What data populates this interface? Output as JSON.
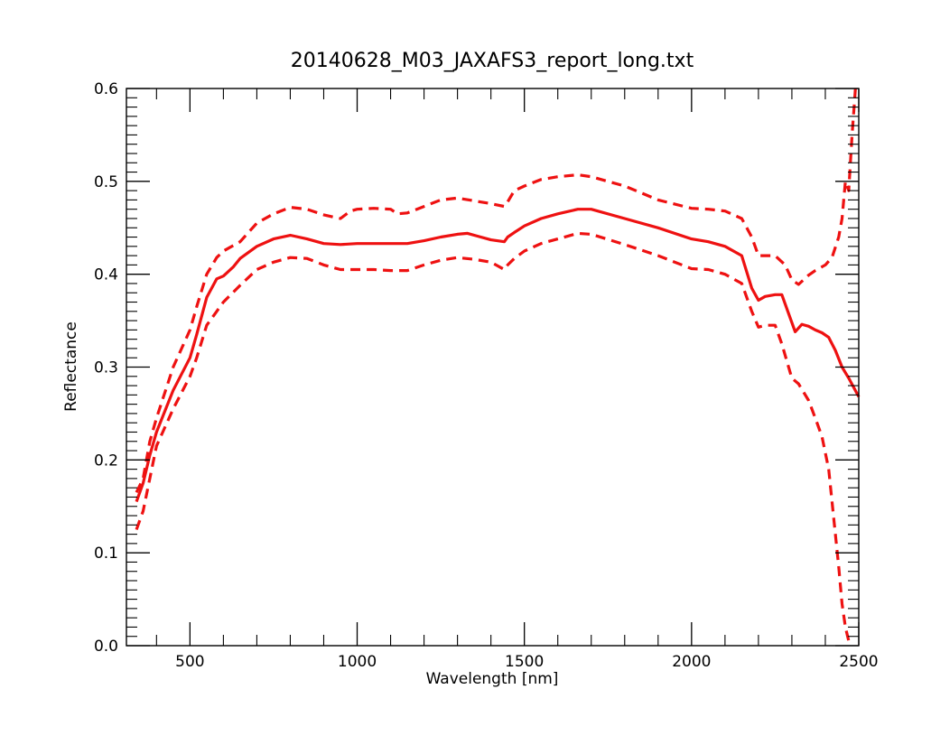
{
  "chart_data": {
    "type": "line",
    "title": "20140628_M03_JAXAFS3_report_long.txt",
    "xlabel": "Wavelength [nm]",
    "ylabel": "Reflectance",
    "xlim": [
      310,
      2500
    ],
    "ylim": [
      0,
      0.6
    ],
    "x_ticks": [
      500,
      1000,
      1500,
      2000,
      2500
    ],
    "y_ticks": [
      0.0,
      0.1,
      0.2,
      0.3,
      0.4,
      0.5,
      0.6
    ],
    "x_tick_labels": [
      "500",
      "1000",
      "1500",
      "2000",
      "2500"
    ],
    "y_tick_labels": [
      "0.0",
      "0.1",
      "0.2",
      "0.3",
      "0.4",
      "0.5",
      "0.6"
    ],
    "grid": false,
    "line_color": "#ee1111",
    "series": [
      {
        "style": "solid",
        "x": [
          340,
          360,
          380,
          400,
          450,
          500,
          520,
          550,
          580,
          600,
          630,
          650,
          700,
          750,
          800,
          850,
          900,
          950,
          1000,
          1050,
          1100,
          1150,
          1200,
          1250,
          1300,
          1330,
          1360,
          1400,
          1440,
          1450,
          1470,
          1500,
          1550,
          1600,
          1660,
          1700,
          1800,
          1900,
          2000,
          2050,
          2100,
          2150,
          2180,
          2200,
          2220,
          2250,
          2270,
          2290,
          2310,
          2330,
          2350,
          2370,
          2390,
          2410,
          2430,
          2450,
          2470,
          2500
        ],
        "y": [
          0.155,
          0.175,
          0.205,
          0.23,
          0.275,
          0.31,
          0.335,
          0.375,
          0.395,
          0.398,
          0.408,
          0.417,
          0.43,
          0.438,
          0.442,
          0.438,
          0.433,
          0.432,
          0.433,
          0.433,
          0.433,
          0.433,
          0.436,
          0.44,
          0.443,
          0.444,
          0.441,
          0.437,
          0.435,
          0.44,
          0.445,
          0.452,
          0.46,
          0.465,
          0.47,
          0.47,
          0.46,
          0.45,
          0.438,
          0.435,
          0.43,
          0.42,
          0.385,
          0.372,
          0.376,
          0.378,
          0.378,
          0.358,
          0.338,
          0.346,
          0.344,
          0.34,
          0.337,
          0.332,
          0.318,
          0.3,
          0.288,
          0.268
        ]
      },
      {
        "style": "dashed",
        "x": [
          340,
          360,
          380,
          400,
          450,
          500,
          520,
          550,
          580,
          600,
          650,
          700,
          750,
          800,
          850,
          900,
          950,
          980,
          1000,
          1050,
          1100,
          1120,
          1150,
          1200,
          1250,
          1300,
          1350,
          1400,
          1440,
          1450,
          1470,
          1500,
          1550,
          1600,
          1660,
          1700,
          1800,
          1900,
          2000,
          2050,
          2100,
          2150,
          2180,
          2200,
          2220,
          2250,
          2280,
          2300,
          2320,
          2350,
          2370,
          2400,
          2420,
          2440,
          2450,
          2460,
          2470,
          2480,
          2490
        ],
        "y": [
          0.165,
          0.18,
          0.22,
          0.245,
          0.3,
          0.34,
          0.365,
          0.4,
          0.418,
          0.425,
          0.435,
          0.455,
          0.465,
          0.472,
          0.47,
          0.464,
          0.46,
          0.468,
          0.47,
          0.471,
          0.47,
          0.465,
          0.466,
          0.473,
          0.48,
          0.482,
          0.479,
          0.476,
          0.473,
          0.478,
          0.49,
          0.495,
          0.502,
          0.505,
          0.507,
          0.505,
          0.495,
          0.48,
          0.471,
          0.47,
          0.468,
          0.46,
          0.44,
          0.42,
          0.42,
          0.42,
          0.41,
          0.394,
          0.389,
          0.399,
          0.404,
          0.41,
          0.418,
          0.44,
          0.46,
          0.5,
          0.49,
          0.55,
          0.6
        ]
      },
      {
        "style": "dashed",
        "x": [
          340,
          360,
          380,
          400,
          450,
          500,
          520,
          550,
          580,
          600,
          650,
          700,
          750,
          800,
          850,
          900,
          950,
          1000,
          1050,
          1100,
          1150,
          1200,
          1250,
          1300,
          1350,
          1400,
          1440,
          1450,
          1470,
          1500,
          1550,
          1600,
          1660,
          1700,
          1800,
          1900,
          2000,
          2050,
          2100,
          2150,
          2180,
          2200,
          2220,
          2250,
          2270,
          2300,
          2320,
          2350,
          2370,
          2390,
          2410,
          2420,
          2430,
          2440,
          2450,
          2460,
          2470
        ],
        "y": [
          0.125,
          0.145,
          0.18,
          0.215,
          0.255,
          0.29,
          0.31,
          0.345,
          0.36,
          0.37,
          0.388,
          0.405,
          0.413,
          0.418,
          0.417,
          0.41,
          0.405,
          0.405,
          0.405,
          0.404,
          0.404,
          0.41,
          0.415,
          0.418,
          0.416,
          0.413,
          0.405,
          0.41,
          0.417,
          0.425,
          0.433,
          0.438,
          0.444,
          0.443,
          0.432,
          0.42,
          0.406,
          0.405,
          0.4,
          0.39,
          0.36,
          0.343,
          0.345,
          0.345,
          0.325,
          0.288,
          0.282,
          0.264,
          0.245,
          0.225,
          0.19,
          0.155,
          0.12,
          0.085,
          0.045,
          0.02,
          0.005
        ]
      }
    ]
  }
}
